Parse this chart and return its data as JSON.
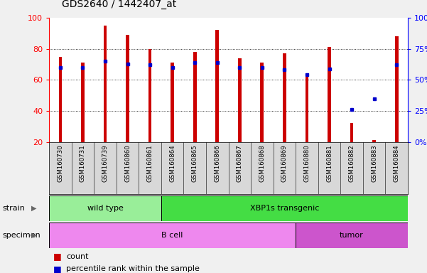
{
  "title": "GDS2640 / 1442407_at",
  "samples": [
    "GSM160730",
    "GSM160731",
    "GSM160739",
    "GSM160860",
    "GSM160861",
    "GSM160864",
    "GSM160865",
    "GSM160866",
    "GSM160867",
    "GSM160868",
    "GSM160869",
    "GSM160880",
    "GSM160881",
    "GSM160882",
    "GSM160883",
    "GSM160884"
  ],
  "counts": [
    75,
    71,
    95,
    89,
    80,
    71,
    78,
    92,
    74,
    71,
    77,
    62,
    81,
    32,
    21,
    88
  ],
  "percentiles": [
    60,
    60,
    65,
    63,
    62,
    60,
    64,
    64,
    60,
    60,
    58,
    54,
    59,
    26,
    35,
    62
  ],
  "y_min": 20,
  "y_max": 100,
  "bar_color": "#cc0000",
  "dot_color": "#0000cc",
  "strain_groups": [
    {
      "label": "wild type",
      "start": 0,
      "end": 5,
      "color": "#99ee99"
    },
    {
      "label": "XBP1s transgenic",
      "start": 5,
      "end": 16,
      "color": "#44dd44"
    }
  ],
  "specimen_groups": [
    {
      "label": "B cell",
      "start": 0,
      "end": 11,
      "color": "#ee88ee"
    },
    {
      "label": "tumor",
      "start": 11,
      "end": 16,
      "color": "#cc55cc"
    }
  ],
  "left_yticks": [
    20,
    40,
    60,
    80,
    100
  ],
  "right_yticks": [
    0,
    25,
    50,
    75,
    100
  ],
  "right_yticklabels": [
    "0%",
    "25%",
    "50%",
    "75%",
    "100%"
  ],
  "bar_width": 0.15,
  "fig_bg": "#f0f0f0",
  "plot_bg": "#ffffff",
  "tick_bg": "#d8d8d8"
}
